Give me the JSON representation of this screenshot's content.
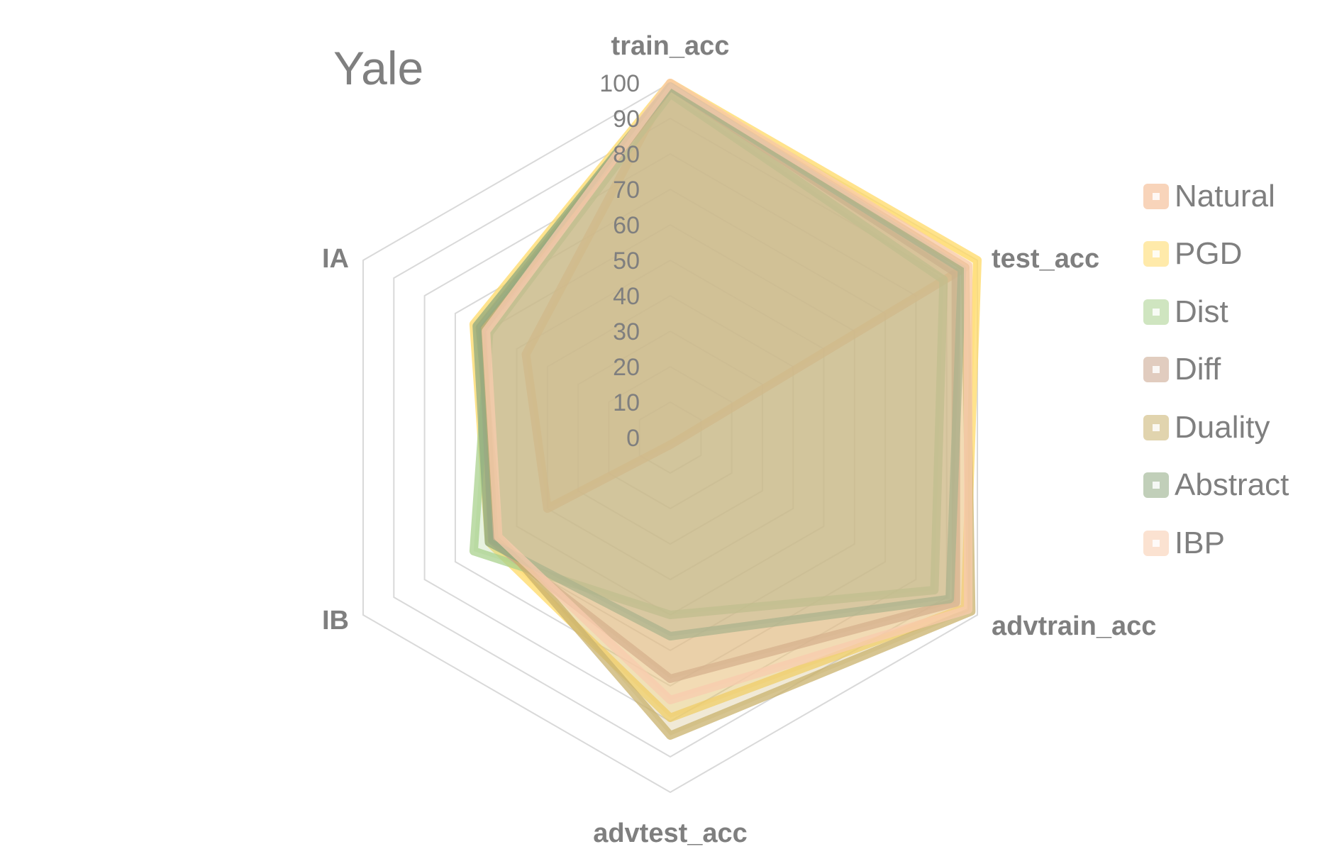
{
  "chart_data": {
    "type": "radar",
    "title": "Yale",
    "axes": [
      "train_acc",
      "test_acc",
      "advtrain_acc",
      "advtest_acc",
      "IB",
      "IA"
    ],
    "radial_ticks": [
      "0",
      "10",
      "20",
      "30",
      "40",
      "50",
      "60",
      "70",
      "80",
      "90",
      "100"
    ],
    "rlim": [
      0,
      100
    ],
    "grid": true,
    "legend_position": "right",
    "series": [
      {
        "name": "Natural",
        "color": "#F4B183",
        "values": [
          100,
          96,
          2,
          2,
          40,
          47
        ]
      },
      {
        "name": "PGD",
        "color": "#FFD966",
        "values": [
          100,
          100,
          96,
          79,
          59,
          64
        ]
      },
      {
        "name": "Dist",
        "color": "#A9D18E",
        "values": [
          97,
          89,
          86,
          50,
          64,
          59
        ]
      },
      {
        "name": "Diff",
        "color": "#C9A48B",
        "values": [
          99,
          93,
          93,
          68,
          58,
          61
        ]
      },
      {
        "name": "Duality",
        "color": "#C9B16C",
        "values": [
          99,
          96,
          98,
          84,
          56,
          62
        ]
      },
      {
        "name": "Abstract",
        "color": "#8FA981",
        "values": [
          99,
          95,
          91,
          56,
          59,
          63
        ]
      },
      {
        "name": "IBP",
        "color": "#F8CBAD",
        "values": [
          100,
          97,
          97,
          74,
          56,
          60
        ]
      }
    ]
  }
}
